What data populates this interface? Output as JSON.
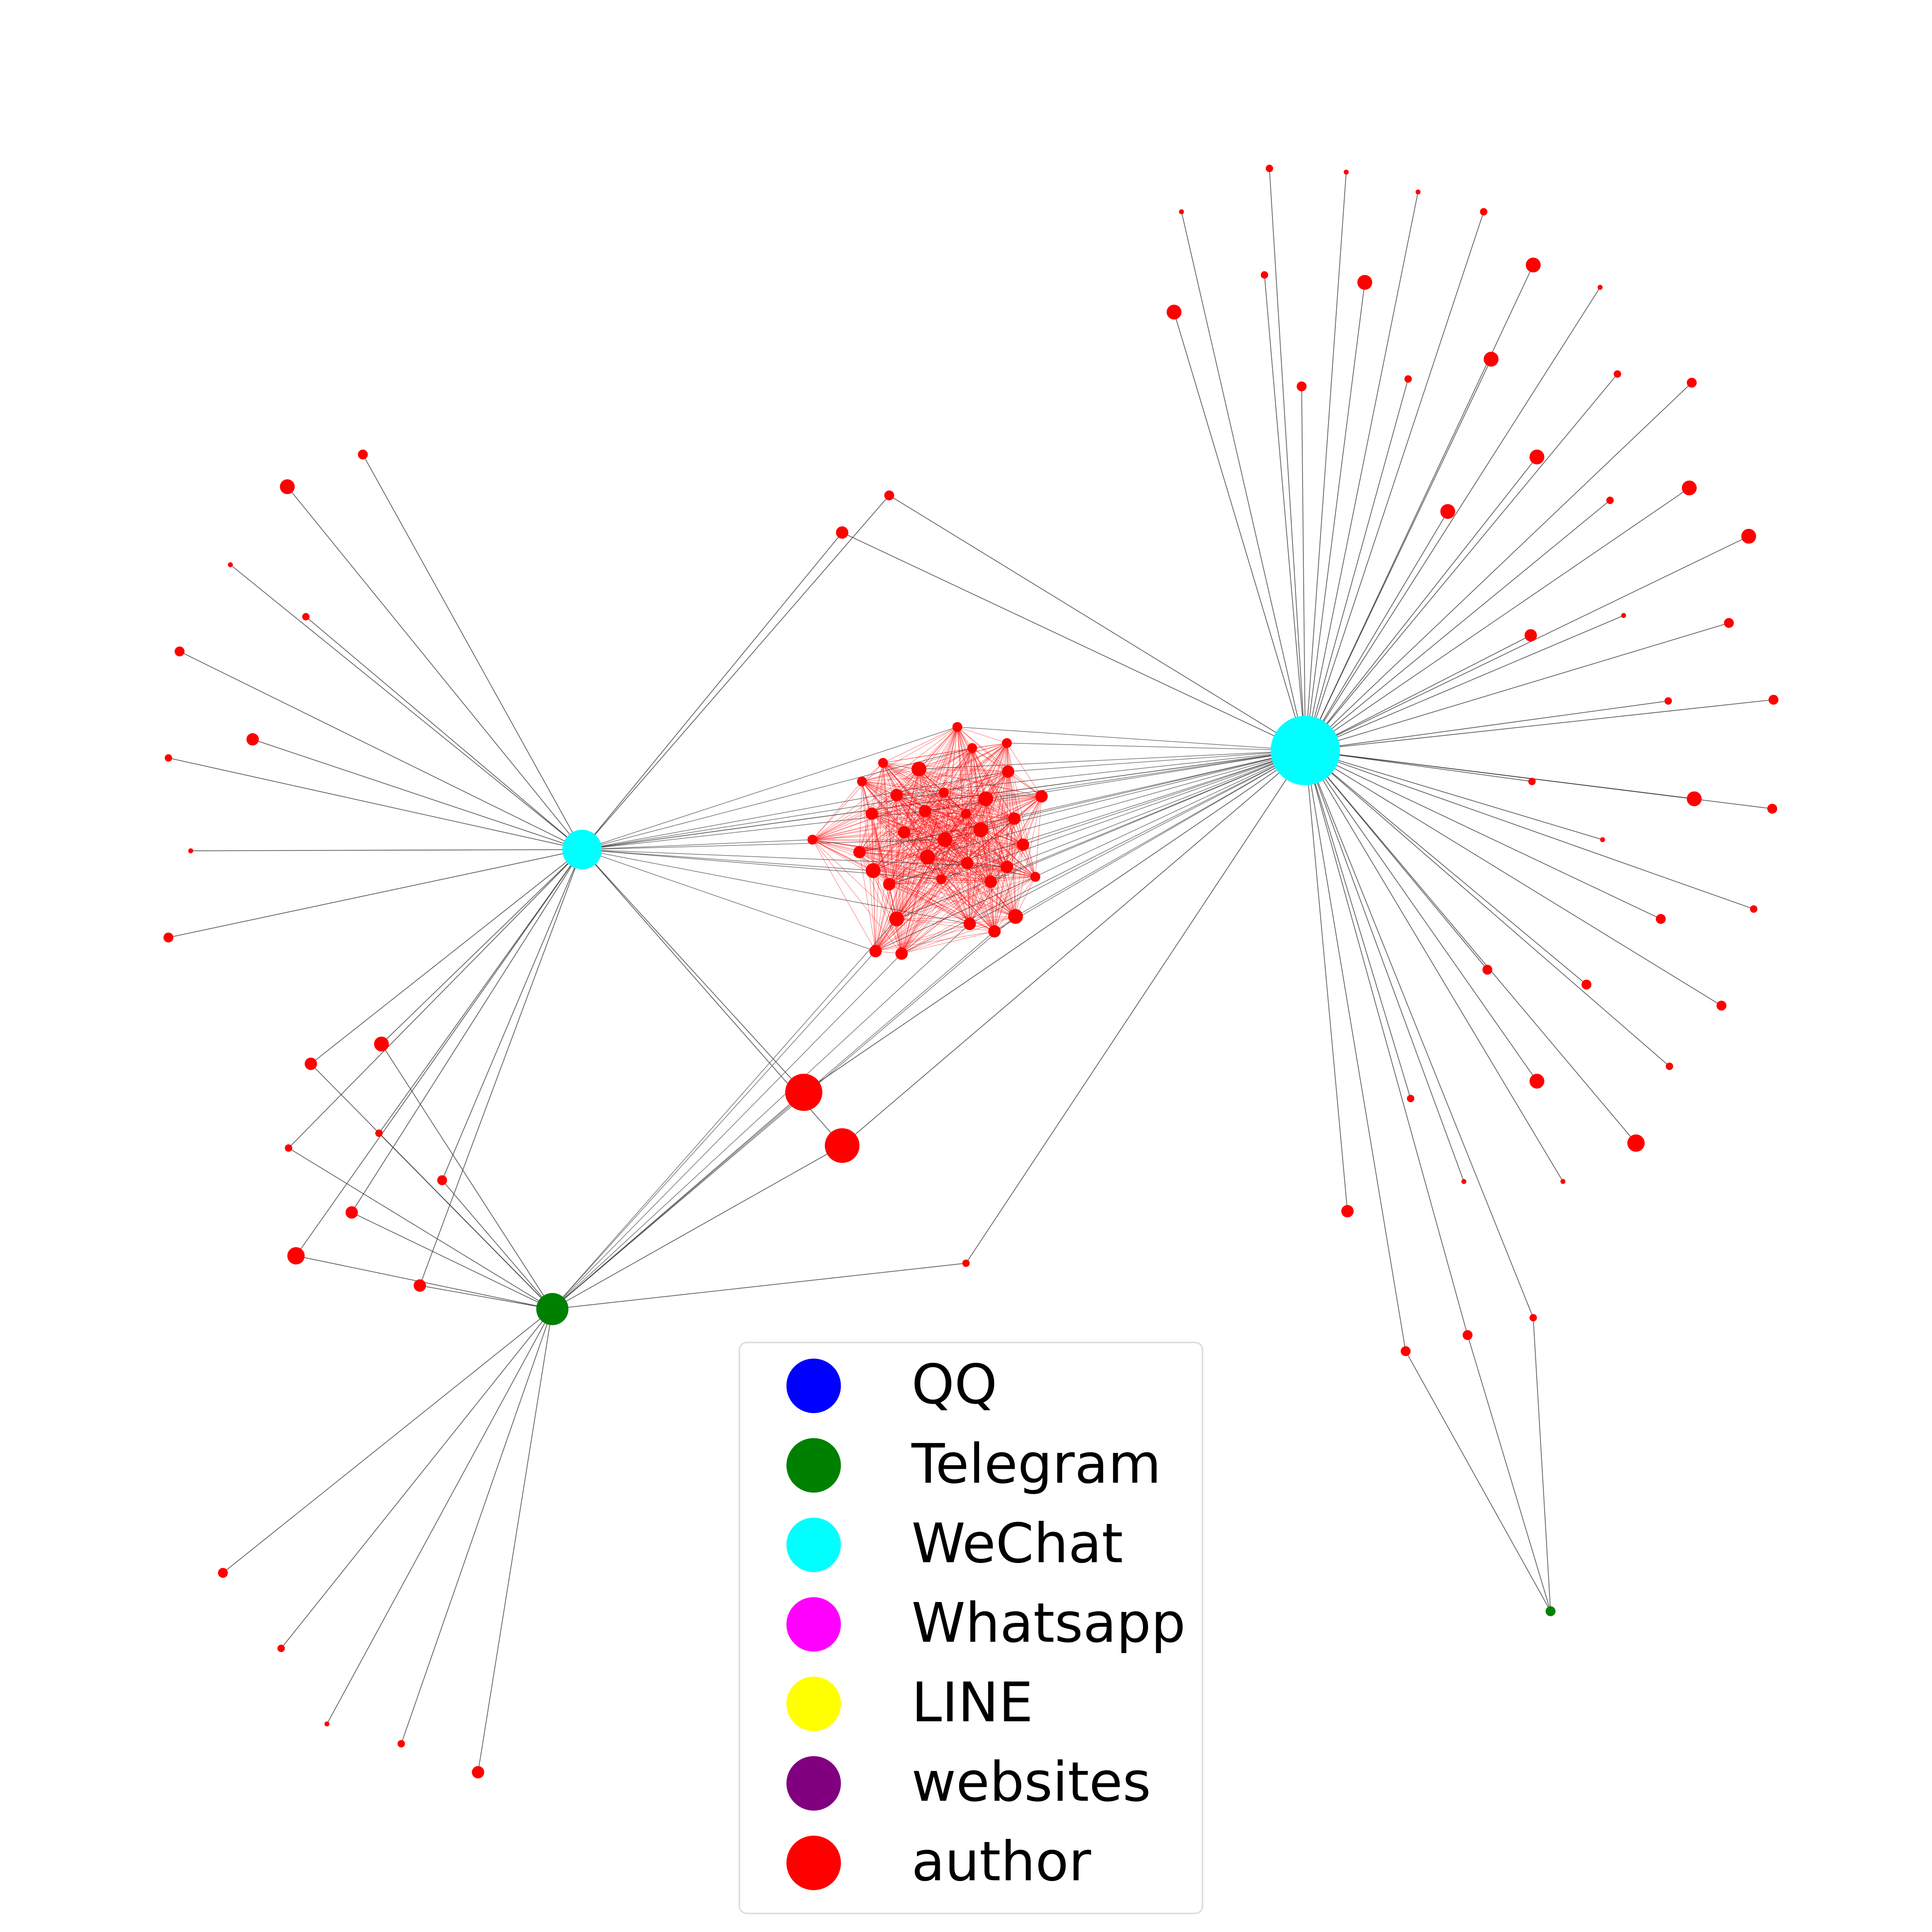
{
  "legend": {
    "items": [
      {
        "label": "QQ",
        "color": "#0000ff"
      },
      {
        "label": "Telegram",
        "color": "#008000"
      },
      {
        "label": "WeChat",
        "color": "#00ffff"
      },
      {
        "label": "Whatsapp",
        "color": "#ff00ff"
      },
      {
        "label": "LINE",
        "color": "#ffff00"
      },
      {
        "label": "websites",
        "color": "#800080"
      },
      {
        "label": "author",
        "color": "#ff0000"
      }
    ]
  }
}
